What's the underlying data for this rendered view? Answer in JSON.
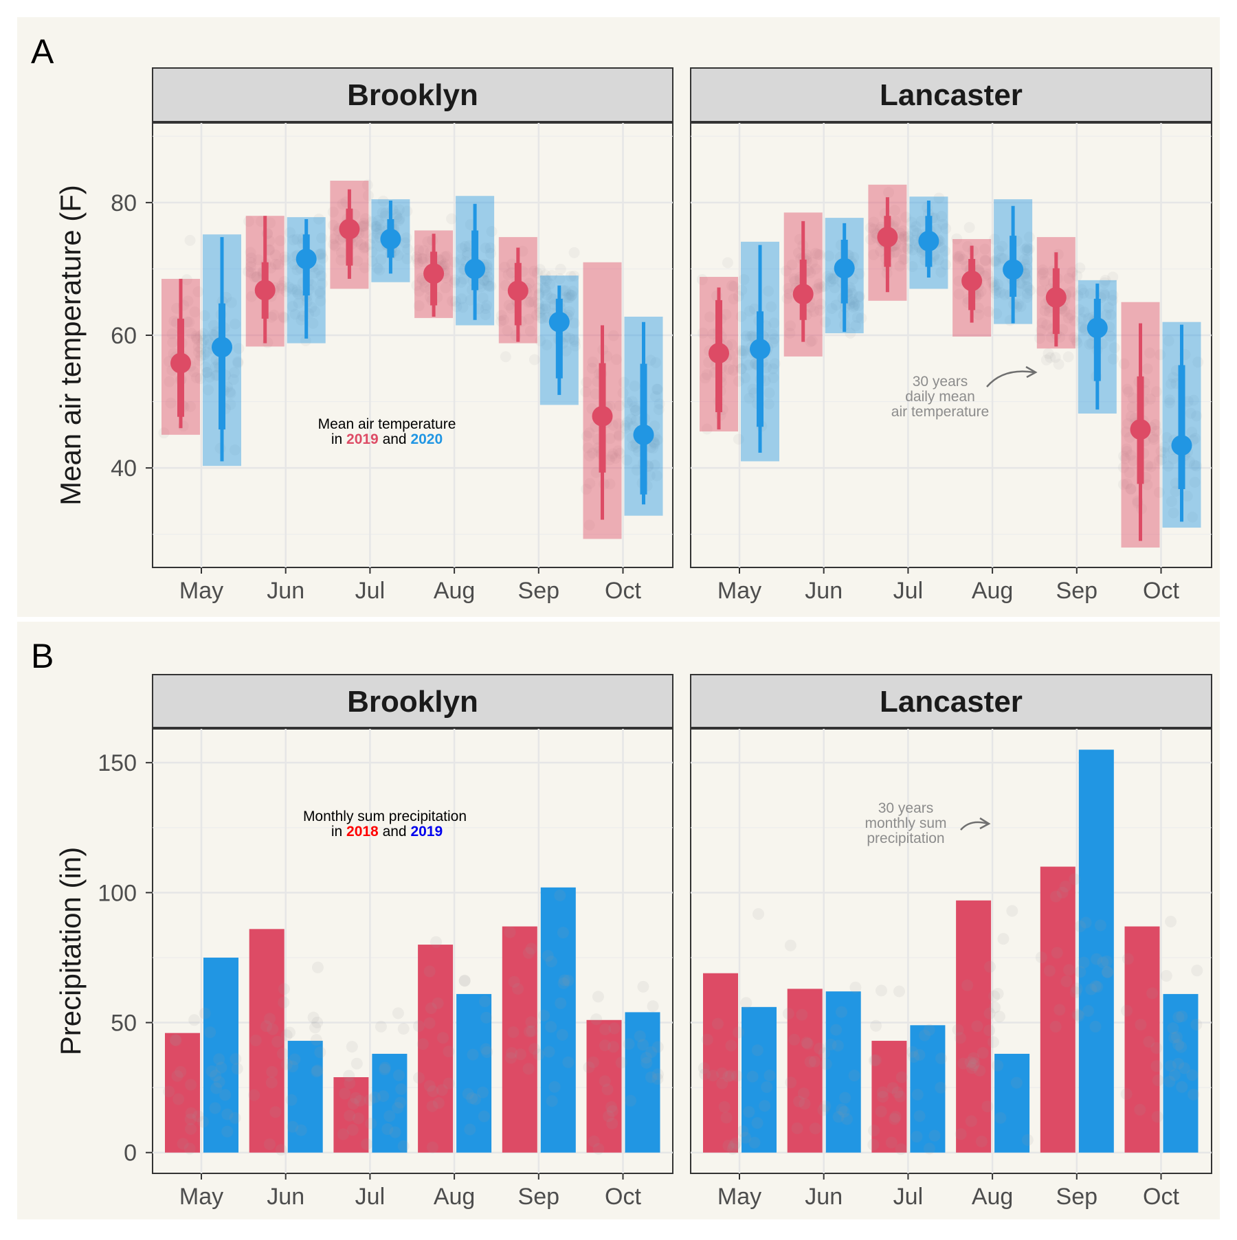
{
  "figure": {
    "panel_a_letter": "A",
    "panel_b_letter": "B"
  },
  "chart_data": [
    {
      "type": "pointrange",
      "panel": "A",
      "ylabel": "Mean air temperature (F)",
      "xlabel": "",
      "categories": [
        "May",
        "Jun",
        "Jul",
        "Aug",
        "Sep",
        "Oct"
      ],
      "y_ticks": [
        40,
        60,
        80
      ],
      "ylim": [
        25,
        92
      ],
      "grid": true,
      "legend_text_line1": "Mean air temperature",
      "legend_text_in": "in",
      "legend_text_and": "and",
      "legend_year1": "2019",
      "legend_year2": "2020",
      "annotation_lines": [
        "30 years",
        "daily mean",
        "air temperature"
      ],
      "colors": {
        "year1": "#dd4b65",
        "year2": "#2196e3",
        "background_points": "#9a9a9a"
      },
      "facets": [
        {
          "name": "Brooklyn",
          "series": [
            {
              "name": "2019",
              "median": [
                55.8,
                66.8,
                76.0,
                69.3,
                66.7,
                47.8
              ],
              "inner_low": [
                47.7,
                62.5,
                70.5,
                64.5,
                61.5,
                39.3
              ],
              "inner_high": [
                62.5,
                71.0,
                79.1,
                72.6,
                70.9,
                55.8
              ],
              "outer_low": [
                46.0,
                58.8,
                68.5,
                62.8,
                59.0,
                32.2
              ],
              "outer_high": [
                68.5,
                78.0,
                82.0,
                75.3,
                73.2,
                61.5
              ],
              "box_low": [
                45.0,
                58.3,
                67.0,
                62.6,
                58.8,
                29.3
              ],
              "box_high": [
                68.5,
                78.0,
                83.3,
                75.8,
                74.8,
                71.0
              ]
            },
            {
              "name": "2020",
              "median": [
                58.2,
                71.5,
                74.5,
                70.0,
                62.0,
                45.0
              ],
              "inner_low": [
                45.8,
                66.0,
                71.7,
                66.8,
                53.5,
                36.0
              ],
              "inner_high": [
                64.8,
                75.2,
                77.5,
                75.8,
                65.5,
                55.7
              ],
              "outer_low": [
                41.0,
                59.5,
                69.3,
                62.3,
                51.0,
                34.5
              ],
              "outer_high": [
                74.8,
                77.5,
                80.3,
                79.8,
                67.5,
                62.0
              ],
              "box_low": [
                40.3,
                58.8,
                68.0,
                61.5,
                49.5,
                32.8
              ],
              "box_high": [
                75.2,
                77.8,
                80.5,
                81.0,
                69.0,
                62.8
              ]
            }
          ]
        },
        {
          "name": "Lancaster",
          "series": [
            {
              "name": "2019",
              "median": [
                57.3,
                66.2,
                74.8,
                68.2,
                65.7,
                45.8
              ],
              "inner_low": [
                48.4,
                62.3,
                70.3,
                63.8,
                60.2,
                37.6
              ],
              "inner_high": [
                65.3,
                71.4,
                78.0,
                71.5,
                70.1,
                53.8
              ],
              "outer_low": [
                45.8,
                59.0,
                66.5,
                61.9,
                58.3,
                29.0
              ],
              "outer_high": [
                67.2,
                77.2,
                80.8,
                73.5,
                72.5,
                61.8
              ],
              "box_low": [
                45.5,
                56.8,
                65.2,
                59.8,
                58.0,
                28.0
              ],
              "box_high": [
                68.8,
                78.5,
                82.7,
                74.5,
                74.8,
                65.0
              ]
            },
            {
              "name": "2020",
              "median": [
                57.9,
                70.1,
                74.2,
                69.9,
                61.1,
                43.4
              ],
              "inner_low": [
                46.2,
                64.8,
                70.3,
                65.8,
                53.1,
                36.8
              ],
              "inner_high": [
                63.6,
                74.4,
                78.0,
                75.0,
                65.5,
                55.5
              ],
              "outer_low": [
                42.3,
                60.5,
                68.7,
                61.8,
                48.8,
                31.9
              ],
              "outer_high": [
                73.6,
                76.9,
                80.3,
                79.5,
                67.8,
                61.6
              ],
              "box_low": [
                41.0,
                60.3,
                67.0,
                61.7,
                48.2,
                31.0
              ],
              "box_high": [
                74.1,
                77.7,
                80.9,
                80.5,
                68.3,
                62.0
              ]
            }
          ]
        }
      ]
    },
    {
      "type": "bar",
      "panel": "B",
      "ylabel": "Precipitation (in)",
      "xlabel": "",
      "categories": [
        "May",
        "Jun",
        "Jul",
        "Aug",
        "Sep",
        "Oct"
      ],
      "y_ticks": [
        0,
        50,
        100,
        150
      ],
      "ylim": [
        -8,
        163
      ],
      "grid": true,
      "legend_text_line1": "Monthly sum precipitation",
      "legend_text_in": "in",
      "legend_text_and": "and",
      "legend_year1": "2018",
      "legend_year2": "2019",
      "legend_year1_color": "#ff0000",
      "legend_year2_color": "#0000ee",
      "annotation_lines": [
        "30 years",
        "monthly sum",
        "precipitation"
      ],
      "colors": {
        "year1": "#dd4b65",
        "year2": "#2196e3",
        "background_points": "#9a9a9a"
      },
      "facets": [
        {
          "name": "Brooklyn",
          "series": [
            {
              "name": "2018",
              "values": [
                46,
                86,
                29,
                80,
                87,
                51
              ]
            },
            {
              "name": "2019",
              "values": [
                75,
                43,
                38,
                61,
                102,
                54
              ]
            }
          ]
        },
        {
          "name": "Lancaster",
          "series": [
            {
              "name": "2018",
              "values": [
                69,
                63,
                43,
                97,
                110,
                87
              ]
            },
            {
              "name": "2019",
              "values": [
                56,
                62,
                49,
                38,
                155,
                61
              ]
            }
          ]
        }
      ]
    }
  ]
}
